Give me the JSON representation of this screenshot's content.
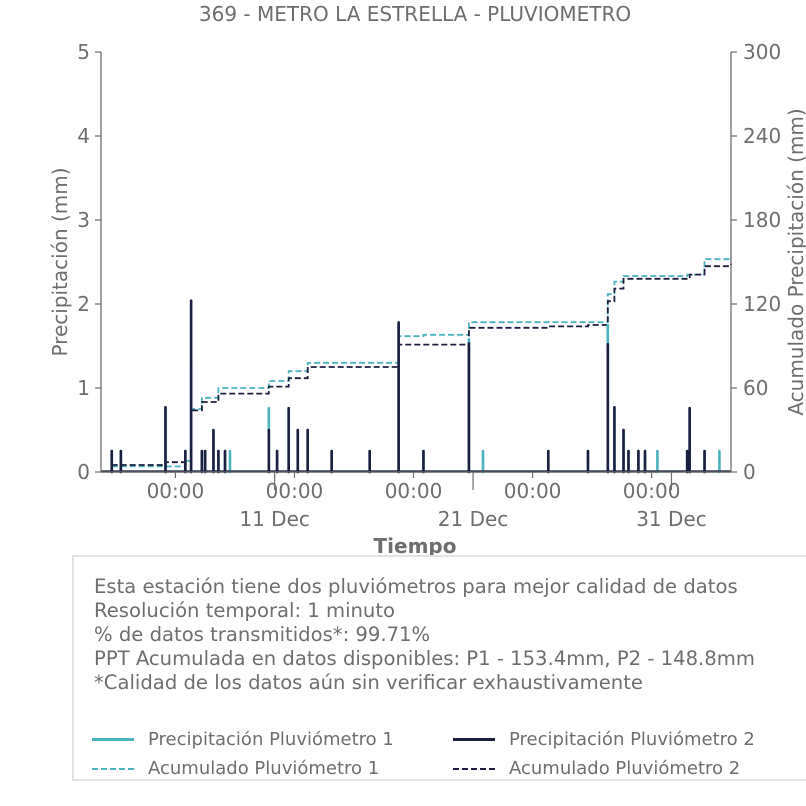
{
  "chart_data": {
    "type": "line",
    "title": "369 - METRO LA ESTRELLA - PLUVIOMETRO",
    "xlabel": "Tiempo",
    "ylabel_left": "Precipitación (mm)",
    "ylabel_right": "Acumulado Precipitación (mm)",
    "ylim_left": [
      0,
      5
    ],
    "ylim_right": [
      0,
      300
    ],
    "yticks_left": [
      "0",
      "1",
      "2",
      "3",
      "4",
      "5"
    ],
    "yticks_right": [
      "0",
      "60",
      "120",
      "180",
      "240",
      "300"
    ],
    "xlim": [
      "2023-12-02T06:00",
      "2024-01-03T00:00"
    ],
    "xticks_major": [
      {
        "x": "2023-12-06T00:00",
        "label": "00:00"
      },
      {
        "x": "2023-12-12T00:00",
        "label": "00:00"
      },
      {
        "x": "2023-12-18T00:00",
        "label": "00:00"
      },
      {
        "x": "2023-12-24T00:00",
        "label": "00:00"
      },
      {
        "x": "2023-12-30T00:00",
        "label": "00:00"
      }
    ],
    "xticks_minor": [
      {
        "x": "2023-12-11T00:00",
        "label": "11 Dec"
      },
      {
        "x": "2023-12-21T00:00",
        "label": "21 Dec"
      },
      {
        "x": "2023-12-31T00:00",
        "label": "31 Dec"
      }
    ],
    "grid": false,
    "legend_position": "bottom",
    "series": [
      {
        "name": "Precipitación Pluviómetro 1",
        "axis": "left",
        "style": "solid",
        "color": "#4ab3bd",
        "x": [
          "2023-12-02T19:00",
          "2023-12-03T06:00",
          "2023-12-05T12:00",
          "2023-12-06T12:00",
          "2023-12-06T19:00",
          "2023-12-07T08:00",
          "2023-12-07T12:00",
          "2023-12-07T22:00",
          "2023-12-08T04:00",
          "2023-12-08T12:00",
          "2023-12-08T18:00",
          "2023-12-10T17:00",
          "2023-12-11T03:00",
          "2023-12-11T17:00",
          "2023-12-12T04:00",
          "2023-12-12T16:00",
          "2023-12-13T21:00",
          "2023-12-15T19:00",
          "2023-12-17T06:00",
          "2023-12-18T12:00",
          "2023-12-20T19:00",
          "2023-12-21T12:00",
          "2023-12-24T19:00",
          "2023-12-26T19:00",
          "2023-12-27T19:00",
          "2023-12-28T03:00",
          "2023-12-28T14:00",
          "2023-12-28T20:00",
          "2023-12-29T08:00",
          "2023-12-29T16:00",
          "2023-12-30T07:00",
          "2023-12-31T19:00",
          "2023-12-31T22:00",
          "2024-01-01T16:00",
          "2024-01-02T10:00"
        ],
        "y": [
          0.25,
          0.25,
          0.77,
          0.25,
          1.3,
          0.25,
          0.25,
          0.5,
          0.25,
          0.25,
          0.25,
          0.76,
          0.25,
          0.76,
          0.5,
          0.5,
          0.25,
          0.25,
          1.76,
          0.25,
          1.58,
          0.25,
          0.25,
          0.25,
          1.75,
          0.77,
          0.5,
          0.25,
          0.25,
          0.25,
          0.25,
          0.25,
          0.76,
          0.25,
          0.25
        ]
      },
      {
        "name": "Precipitación Pluviómetro 2",
        "axis": "left",
        "style": "solid",
        "color": "#1c1f3f",
        "x": [
          "2023-12-02T19:00",
          "2023-12-03T06:00",
          "2023-12-05T12:00",
          "2023-12-06T12:00",
          "2023-12-06T19:00",
          "2023-12-07T08:00",
          "2023-12-07T12:00",
          "2023-12-07T22:00",
          "2023-12-08T04:00",
          "2023-12-08T12:00",
          "2023-12-10T17:00",
          "2023-12-11T03:00",
          "2023-12-11T17:00",
          "2023-12-12T04:00",
          "2023-12-12T16:00",
          "2023-12-13T21:00",
          "2023-12-15T19:00",
          "2023-12-17T06:00",
          "2023-12-18T12:00",
          "2023-12-20T19:00",
          "2023-12-24T19:00",
          "2023-12-26T19:00",
          "2023-12-27T19:00",
          "2023-12-28T03:00",
          "2023-12-28T14:00",
          "2023-12-28T20:00",
          "2023-12-29T08:00",
          "2023-12-29T16:00",
          "2023-12-31T19:00",
          "2023-12-31T22:00",
          "2024-01-01T16:00"
        ],
        "y": [
          0.25,
          0.25,
          0.77,
          0.25,
          2.04,
          0.25,
          0.25,
          0.5,
          0.25,
          0.25,
          0.5,
          0.25,
          0.76,
          0.5,
          0.5,
          0.25,
          0.25,
          1.78,
          0.25,
          1.53,
          0.25,
          0.25,
          1.52,
          0.77,
          0.5,
          0.25,
          0.25,
          0.25,
          0.25,
          0.76,
          0.25
        ]
      },
      {
        "name": "Acumulado Pluviómetro 1",
        "axis": "right",
        "style": "dashed",
        "color": "#4ab3bd",
        "x": [
          "2023-12-02T19:00",
          "2023-12-06T12:00",
          "2023-12-06T19:00",
          "2023-12-07T08:00",
          "2023-12-08T04:00",
          "2023-12-10T17:00",
          "2023-12-11T17:00",
          "2023-12-12T16:00",
          "2023-12-17T06:00",
          "2023-12-18T12:00",
          "2023-12-20T19:00",
          "2023-12-27T19:00",
          "2023-12-28T03:00",
          "2023-12-28T14:00",
          "2023-12-31T19:00",
          "2024-01-01T16:00",
          "2024-01-03T00:00"
        ],
        "y": [
          4,
          8,
          45,
          53,
          60,
          65,
          72,
          78,
          97,
          98,
          107,
          127,
          136,
          140,
          141,
          152,
          153.4
        ]
      },
      {
        "name": "Acumulado Pluviómetro 2",
        "axis": "right",
        "style": "dashed",
        "color": "#1c1f3f",
        "x": [
          "2023-12-02T19:00",
          "2023-12-05T12:00",
          "2023-12-06T19:00",
          "2023-12-07T08:00",
          "2023-12-08T04:00",
          "2023-12-10T17:00",
          "2023-12-11T17:00",
          "2023-12-12T16:00",
          "2023-12-17T06:00",
          "2023-12-20T19:00",
          "2023-12-24T19:00",
          "2023-12-26T19:00",
          "2023-12-27T19:00",
          "2023-12-28T03:00",
          "2023-12-28T14:00",
          "2023-12-31T22:00",
          "2024-01-01T16:00",
          "2024-01-03T00:00"
        ],
        "y": [
          5,
          7,
          44,
          50,
          56,
          61,
          67,
          75,
          91,
          103,
          104,
          105,
          122,
          131,
          138,
          141,
          147,
          148.8
        ]
      }
    ]
  },
  "info": {
    "lines": [
      "Esta estación tiene dos pluviómetros para mejor calidad de datos",
      "Resolución temporal: 1 minuto",
      "% de datos transmitidos*: 99.71%",
      "PPT Acumulada en datos disponibles: P1 - 153.4mm, P2 - 148.8mm",
      "*Calidad de los datos aún sin verificar exhaustivamente"
    ]
  },
  "colors": {
    "pluviometro_1": "#4ab3bd",
    "pluviometro_2": "#1c1f3f",
    "axis": "#6e6e6e",
    "text": "#6e6e6e"
  }
}
